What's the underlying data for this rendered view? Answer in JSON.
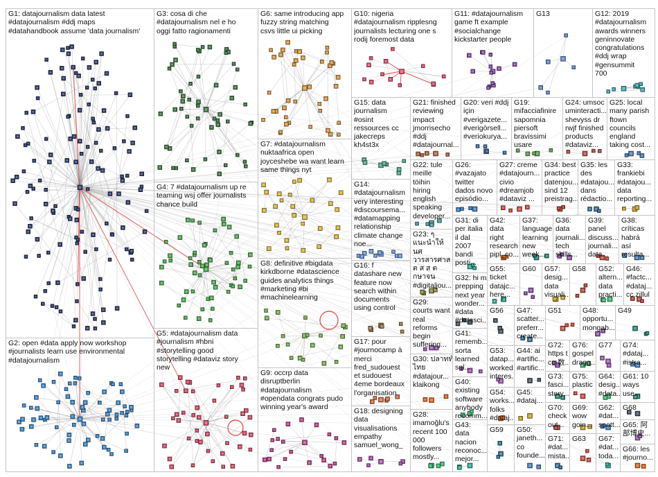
{
  "colors": {
    "background": "#ffffff",
    "box_border": "#c4c4c4",
    "label_text": "#111111",
    "edge": "#8c8c8c",
    "highlight_edge": "#e23b3b"
  },
  "groups": [
    {
      "id": "G1",
      "node_color": "#1f2d5a",
      "lines": [
        "G1: datajournalism data latest",
        "#datajournalism #ddj maps",
        "#datahandbook assume 'data journalism'"
      ]
    },
    {
      "id": "G2",
      "node_color": "#2b7bbd",
      "lines": [
        "G2: open #data apply now workshop",
        "#journalists learn use environmental",
        "#datajournalism"
      ]
    },
    {
      "id": "G3",
      "node_color": "#2f6a33",
      "lines": [
        "G3: cosa di che",
        "#datajournalism nel e ho",
        "oggi fatto ragionamenti"
      ]
    },
    {
      "id": "G4",
      "node_color": "#3d9e3f",
      "lines": [
        "G4: 7 #datajournalism up re",
        "teaming wsj offer journalists",
        "chance build"
      ]
    },
    {
      "id": "G5",
      "node_color": "#cc3b55",
      "lines": [
        "G5: #datajournalism data",
        "#journalism #hbni",
        "#storytelling good",
        "storytelling #dataviz story",
        "new"
      ]
    },
    {
      "id": "G6",
      "node_color": "#cf8a2b",
      "lines": [
        "G6: same introducing app",
        "fuzzy string matching",
        "csvs little ui picking"
      ]
    },
    {
      "id": "G7",
      "node_color": "#d1ad22",
      "lines": [
        "G7: #datajournalism",
        "nuktaafrica open",
        "joyceshebe wa want learn",
        "same things nyt"
      ]
    },
    {
      "id": "G8",
      "node_color": "#6aa23f",
      "lines": [
        "G8: definitive #bigdata",
        "kirkdborne #datascience",
        "guides analytics things",
        "#marketing #bi",
        "#machinelearning"
      ]
    },
    {
      "id": "G9",
      "node_color": "#b3327e",
      "lines": [
        "G9: occrp data",
        "disruptberlin",
        "#datajournalism",
        "#opendata congrats pudo",
        "winning year's award"
      ]
    },
    {
      "id": "G10",
      "node_color": "#d43d5f",
      "lines": [
        "G10: nigeria",
        "#datajournalism ripplesng",
        "journalists lecturing one s",
        "rodij foremost data"
      ]
    },
    {
      "id": "G11",
      "node_color": "#7b3da3",
      "lines": [
        "G11: #datajournalism",
        "game ft example",
        "#socialchange",
        "kickstarter people"
      ]
    },
    {
      "id": "G12",
      "node_color": "#2b9ea3",
      "lines": [
        "G12: 2019",
        "#datajournalism",
        "awards winners",
        "geninnovate",
        "congratulations",
        "#ddj wrap",
        "#gensummit",
        "700"
      ]
    },
    {
      "id": "G13",
      "node_color": "#4c7cc4",
      "lines": [
        "G13"
      ]
    },
    {
      "id": "G14",
      "node_color": "#5b8bd2",
      "lines": [
        "G14:",
        "#datajournalism",
        "very interesting",
        "#discoursema...",
        "#datamapping",
        "relationship",
        "climate change",
        "noe..."
      ]
    },
    {
      "id": "G15",
      "node_color": "#3c9b7d",
      "lines": [
        "G15: data",
        "journalism",
        "#osint",
        "ressources cc",
        "jakecreps",
        "kh4st3x"
      ]
    },
    {
      "id": "G16",
      "node_color": "#8a6d3b",
      "lines": [
        "G16: f",
        "datashare new",
        "feature now",
        "search within",
        "documents",
        "using control"
      ]
    },
    {
      "id": "G17",
      "node_color": "#c45c2e",
      "lines": [
        "G17: pour",
        "#journocamp à",
        "merci",
        "fred_sudouest",
        "et sudouest",
        "4eme bordeaux",
        "l'organisation"
      ]
    },
    {
      "id": "G18",
      "node_color": "#9b3b9b",
      "lines": [
        "G18: designing",
        "data",
        "visualisations",
        "empathy",
        "samuel_wong_"
      ]
    },
    {
      "id": "G19",
      "node_color": "#4f8f3f",
      "lines": [
        "G19:",
        "mifacciafinire",
        "sapomnia",
        "piersoft",
        "bravissimi",
        "usare"
      ]
    },
    {
      "id": "G20",
      "node_color": "#2f5fa0",
      "lines": [
        "G20: veri #ddj",
        "için",
        "#verigazete...",
        "#verigörsell...",
        "#veriokurya..."
      ]
    },
    {
      "id": "G21",
      "node_color": "#a0522d",
      "lines": [
        "G21: finished",
        "reviewing",
        "impact",
        "jmorrisecho",
        "#ddj",
        "#datajournal..."
      ]
    },
    {
      "id": "G22",
      "node_color": "#3a8a8a",
      "lines": [
        "G22: tule",
        "meille",
        "töihin",
        "hiring",
        "english",
        "speaking",
        "developer..."
      ]
    },
    {
      "id": "G23",
      "node_color": "#7a7a2a",
      "lines": [
        "G23: ๆ",
        "แนะนำให้",
        "นศ",
        "วารสารศาส",
        "ต ส ส ต",
        "กษาจน",
        "#digitaljou..."
      ]
    },
    {
      "id": "G24",
      "node_color": "#aa3a3a",
      "lines": [
        "G24: umsoc",
        "uminteracti...",
        "shevyss dr",
        "rwjf finished",
        "products",
        "#dataviz..."
      ]
    },
    {
      "id": "G25",
      "node_color": "#3a6aaa",
      "lines": [
        "G25: local",
        "many parish",
        "ftown",
        "councils",
        "england",
        "taking cost..."
      ]
    },
    {
      "id": "G26",
      "node_color": "#2f6fb0",
      "lines": [
        "G26:",
        "#vazajato",
        "twitter",
        "dados novo",
        "episódio..."
      ]
    },
    {
      "id": "G27",
      "node_color": "#c0392b",
      "lines": [
        "G27: creme",
        "#datajourn...",
        "civio",
        "#dreamjob",
        "#dataviz ..."
      ]
    },
    {
      "id": "G28",
      "node_color": "#27ae60",
      "lines": [
        "G28:",
        "imamoğlu's",
        "recent 100",
        "000",
        "followers",
        "mostly..."
      ]
    },
    {
      "id": "G29",
      "node_color": "#8e44ad",
      "lines": [
        "G29:",
        "courts want",
        "real",
        "reforms",
        "begin",
        "suffering..."
      ]
    },
    {
      "id": "G30",
      "node_color": "#d35400",
      "lines": [
        "G30: ปลาททั",
        "ไทย",
        "#datajour...",
        "klaikong"
      ]
    },
    {
      "id": "G31",
      "node_color": "#16a085",
      "lines": [
        "G31: di",
        "per italia",
        "il dal",
        "2007",
        "bandi",
        "posti..."
      ]
    },
    {
      "id": "G32",
      "node_color": "#2c3e50",
      "lines": [
        "G32: hi m",
        "prepping",
        "next year",
        "wonder...",
        "#data",
        "#datasci..."
      ]
    },
    {
      "id": "G33",
      "node_color": "#b7950b",
      "lines": [
        "G33:",
        "frankiebi",
        "#datajou...",
        "data",
        "reporting..."
      ]
    },
    {
      "id": "G34",
      "node_color": "#a93226",
      "lines": [
        "G34: best",
        "practice",
        "datenjou...",
        "sind 12",
        "preistrag..."
      ]
    },
    {
      "id": "G35",
      "node_color": "#1f618d",
      "lines": [
        "G35: les",
        "des",
        "#datajou...",
        "dans",
        "rédactio..."
      ]
    },
    {
      "id": "G36",
      "node_color": "#7d3c98",
      "lines": [
        "G36:",
        "data",
        "journali...",
        "tech",
        "skills..."
      ]
    },
    {
      "id": "G37",
      "node_color": "#117a65",
      "lines": [
        "G37:",
        "language",
        "learning",
        "new",
        "week..."
      ]
    },
    {
      "id": "G38",
      "node_color": "#2f6fb0",
      "lines": [
        "G38:",
        "críticas",
        "habrá",
        "así",
        "resulta..."
      ]
    },
    {
      "id": "G39",
      "node_color": "#c0392b",
      "lines": [
        "G39:",
        "panel",
        "discuss...",
        "journali...",
        "data..."
      ]
    },
    {
      "id": "G40",
      "node_color": "#27ae60",
      "lines": [
        "G40:",
        "existing",
        "software",
        "anybody",
        "recomm..."
      ]
    },
    {
      "id": "G41",
      "node_color": "#8e44ad",
      "lines": [
        "G41:",
        "rememb...",
        "sorta",
        "learned",
        "sql..."
      ]
    },
    {
      "id": "G42",
      "node_color": "#d35400",
      "lines": [
        "G42:",
        "data",
        "right",
        "research",
        "pipl_co..."
      ]
    },
    {
      "id": "G43",
      "node_color": "#16a085",
      "lines": [
        "G43:",
        "data",
        "nacion",
        "reconoc...",
        "mejor..."
      ]
    },
    {
      "id": "G44",
      "node_color": "#2c3e50",
      "lines": [
        "G44: ai",
        "#artific...",
        "#artific..."
      ]
    },
    {
      "id": "G45",
      "node_color": "#b7950b",
      "lines": [
        "G45:",
        "#dataj..."
      ]
    },
    {
      "id": "G46",
      "node_color": "#a93226",
      "lines": [
        "G46:",
        "#factc...",
        "#dataj...",
        "cc zillul"
      ]
    },
    {
      "id": "G47",
      "node_color": "#1f618d",
      "lines": [
        "G47:",
        "scatter...",
        "preferr...",
        "create..."
      ]
    },
    {
      "id": "G48",
      "node_color": "#7d3c98",
      "lines": [
        "G48:",
        "opportu...",
        "mongab..."
      ]
    },
    {
      "id": "G49",
      "node_color": "#117a65",
      "lines": [
        "G49"
      ]
    },
    {
      "id": "G50",
      "node_color": "#2f6fb0",
      "lines": [
        "G50:",
        "janeth...",
        "co",
        "founde..."
      ]
    },
    {
      "id": "G51",
      "node_color": "#c0392b",
      "lines": [
        "G51"
      ]
    },
    {
      "id": "G52",
      "node_color": "#27ae60",
      "lines": [
        "G52:",
        "altern...",
        "data",
        "practi..."
      ]
    },
    {
      "id": "G53",
      "node_color": "#8e44ad",
      "lines": [
        "G53:",
        "datap...",
        "worked",
        "interes..."
      ]
    },
    {
      "id": "G54",
      "node_color": "#d35400",
      "lines": [
        "G54:",
        "works...",
        "folks",
        "#dataj..."
      ]
    },
    {
      "id": "G55",
      "node_color": "#16a085",
      "lines": [
        "G55:",
        "ticket",
        "datajc...",
        "here..."
      ]
    },
    {
      "id": "G56",
      "node_color": "#2c3e50",
      "lines": [
        "G56"
      ]
    },
    {
      "id": "G57",
      "node_color": "#b7950b",
      "lines": [
        "G57:",
        "desig...",
        "data",
        "visuali..."
      ]
    },
    {
      "id": "G58",
      "node_color": "#a93226",
      "lines": [
        "G58"
      ]
    },
    {
      "id": "G59",
      "node_color": "#1f618d",
      "lines": [
        "G59"
      ]
    },
    {
      "id": "G60",
      "node_color": "#7d3c98",
      "lines": [
        "G60"
      ]
    },
    {
      "id": "G61",
      "node_color": "#117a65",
      "lines": [
        "G61: 10",
        "ways",
        "use..."
      ]
    },
    {
      "id": "G62",
      "node_color": "#2f6fb0",
      "lines": [
        "G62:",
        "#dat...",
        "spott..."
      ]
    },
    {
      "id": "G63",
      "node_color": "#c0392b",
      "lines": [
        "G63"
      ]
    },
    {
      "id": "G64",
      "node_color": "#27ae60",
      "lines": [
        "G64:",
        "desig...",
        "#data..."
      ]
    },
    {
      "id": "G65",
      "node_color": "#8e44ad",
      "lines": [
        "G65: 阿",
        "部博史..."
      ]
    },
    {
      "id": "G66",
      "node_color": "#d35400",
      "lines": [
        "G66: les",
        "#journo..."
      ]
    },
    {
      "id": "G67",
      "node_color": "#16a085",
      "lines": [
        "G67:",
        "#dat...",
        "toda..."
      ]
    },
    {
      "id": "G68",
      "node_color": "#2c3e50",
      "lines": [
        "G68"
      ]
    },
    {
      "id": "G69",
      "node_color": "#b7950b",
      "lines": [
        "G69:",
        "wow",
        "goin..."
      ]
    },
    {
      "id": "G70",
      "node_color": "#a93226",
      "lines": [
        "G70:",
        "check",
        "out..."
      ]
    },
    {
      "id": "G71",
      "node_color": "#1f618d",
      "lines": [
        "G71:",
        "#dat...",
        "mista..."
      ]
    },
    {
      "id": "G72",
      "node_color": "#7d3c98",
      "lines": [
        "G72:",
        "https t",
        "co 数..."
      ]
    },
    {
      "id": "G73",
      "node_color": "#117a65",
      "lines": [
        "G73:",
        "fasci...",
        "story..."
      ]
    },
    {
      "id": "G74",
      "node_color": "#2f6fb0",
      "lines": [
        "G74:",
        "#dataj...",
        "#istra..."
      ]
    },
    {
      "id": "G75",
      "node_color": "#c0392b",
      "lines": [
        "G75:",
        "plastic"
      ]
    },
    {
      "id": "G76",
      "node_color": "#27ae60",
      "lines": [
        "G76:",
        "gospel",
        "dragg..."
      ]
    },
    {
      "id": "G77",
      "node_color": "#8e44ad",
      "lines": [
        "G77"
      ]
    }
  ]
}
